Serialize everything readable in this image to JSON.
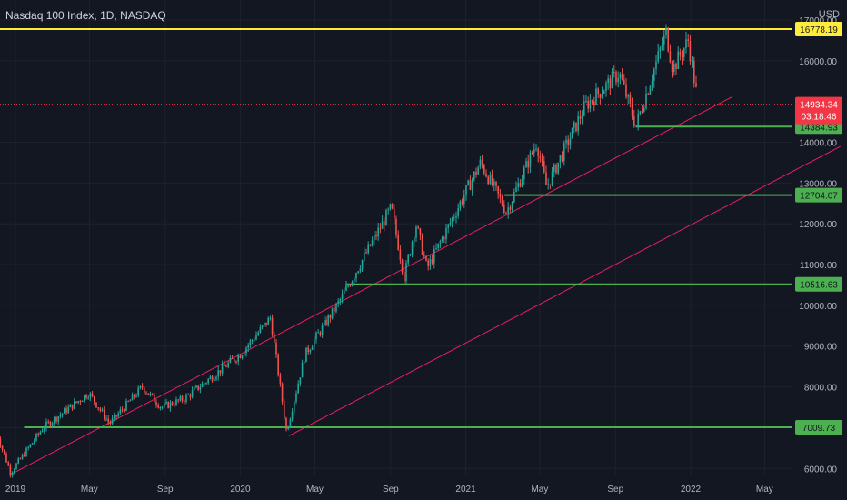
{
  "header": {
    "title": "Nasdaq 100 Index, 1D, NASDAQ",
    "currency": "USD"
  },
  "colors": {
    "background": "#131722",
    "axis_text": "#b2b5be",
    "up": "#26a69a",
    "down": "#ef5350",
    "resistance": "#ffeb3b",
    "support": "#4caf50",
    "trendline": "#e91e63",
    "price_label": "#f23645"
  },
  "chart_data": {
    "type": "candlestick",
    "title": "Nasdaq 100 Index, 1D, NASDAQ",
    "ylabel": "USD",
    "ylim": [
      5850,
      17000
    ],
    "y_ticks": [
      "17000.00",
      "16000.00",
      "14000.00",
      "13000.00",
      "12000.00",
      "11000.00",
      "10000.00",
      "9000.00",
      "8000.00",
      "7000.00",
      "6000.00"
    ],
    "x_ticks": [
      "2019",
      "May",
      "Sep",
      "2020",
      "May",
      "Sep",
      "2021",
      "May",
      "Sep",
      "2022",
      "May"
    ],
    "price_path": [
      {
        "date": "2018-12-01",
        "close": 6900
      },
      {
        "date": "2018-12-24",
        "close": 5900
      },
      {
        "date": "2019-02-15",
        "close": 7000
      },
      {
        "date": "2019-04-30",
        "close": 7850
      },
      {
        "date": "2019-06-03",
        "close": 7100
      },
      {
        "date": "2019-07-26",
        "close": 8000
      },
      {
        "date": "2019-08-26",
        "close": 7500
      },
      {
        "date": "2019-10-01",
        "close": 7700
      },
      {
        "date": "2020-01-01",
        "close": 8800
      },
      {
        "date": "2020-02-19",
        "close": 9700
      },
      {
        "date": "2020-03-16",
        "close": 6900
      },
      {
        "date": "2020-04-15",
        "close": 8800
      },
      {
        "date": "2020-06-10",
        "close": 10100
      },
      {
        "date": "2020-09-02",
        "close": 12400
      },
      {
        "date": "2020-09-23",
        "close": 10700
      },
      {
        "date": "2020-10-12",
        "close": 12000
      },
      {
        "date": "2020-10-30",
        "close": 10900
      },
      {
        "date": "2021-01-25",
        "close": 13500
      },
      {
        "date": "2021-03-08",
        "close": 12300
      },
      {
        "date": "2021-04-26",
        "close": 14000
      },
      {
        "date": "2021-05-12",
        "close": 12900
      },
      {
        "date": "2021-07-14",
        "close": 14900
      },
      {
        "date": "2021-09-07",
        "close": 15700
      },
      {
        "date": "2021-10-04",
        "close": 14400
      },
      {
        "date": "2021-11-22",
        "close": 16700
      },
      {
        "date": "2021-12-03",
        "close": 15800
      },
      {
        "date": "2021-12-28",
        "close": 16500
      },
      {
        "date": "2022-01-13",
        "close": 14934
      }
    ],
    "horizontal_levels": [
      {
        "value": 16778.19,
        "label": "16778.19",
        "color": "#ffeb3b",
        "start_date": "2018-12-01"
      },
      {
        "value": 14384.93,
        "label": "14384.93",
        "color": "#4caf50",
        "start_date": "2021-10-04"
      },
      {
        "value": 12704.07,
        "label": "12704.07",
        "color": "#4caf50",
        "start_date": "2021-03-05"
      },
      {
        "value": 10516.63,
        "label": "10516.63",
        "color": "#4caf50",
        "start_date": "2020-06-20"
      },
      {
        "value": 7009.73,
        "label": "7009.73",
        "color": "#4caf50",
        "start_date": "2019-01-15"
      }
    ],
    "trendlines": [
      {
        "from": {
          "date": "2018-12-24",
          "value": 5850
        },
        "to": {
          "date": "2022-03-10",
          "value": 15120
        },
        "color": "#e91e63"
      },
      {
        "from": {
          "date": "2020-03-20",
          "value": 6800
        },
        "to": {
          "date": "2022-09-01",
          "value": 13900
        },
        "color": "#e91e63"
      }
    ],
    "last_price": {
      "value": 14934.34,
      "label": "14934.34",
      "countdown": "03:18:46"
    }
  }
}
